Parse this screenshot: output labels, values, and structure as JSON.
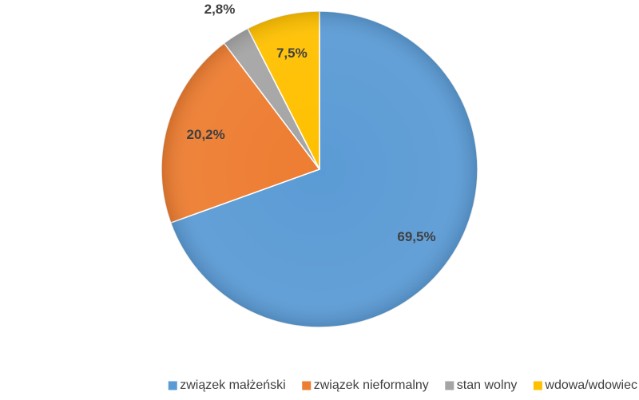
{
  "chart_data": {
    "type": "pie",
    "categories": [
      "związek małżeński",
      "związek nieformalny",
      "stan wolny",
      "wdowa/wdowiec"
    ],
    "values": [
      69.5,
      20.2,
      2.8,
      7.5
    ],
    "value_labels": [
      "69,5%",
      "20,2%",
      "2,8%",
      "7,5%"
    ],
    "colors": [
      "#5b9bd5",
      "#ed7d31",
      "#a5a5a5",
      "#ffc000"
    ],
    "legend": "bottom"
  }
}
